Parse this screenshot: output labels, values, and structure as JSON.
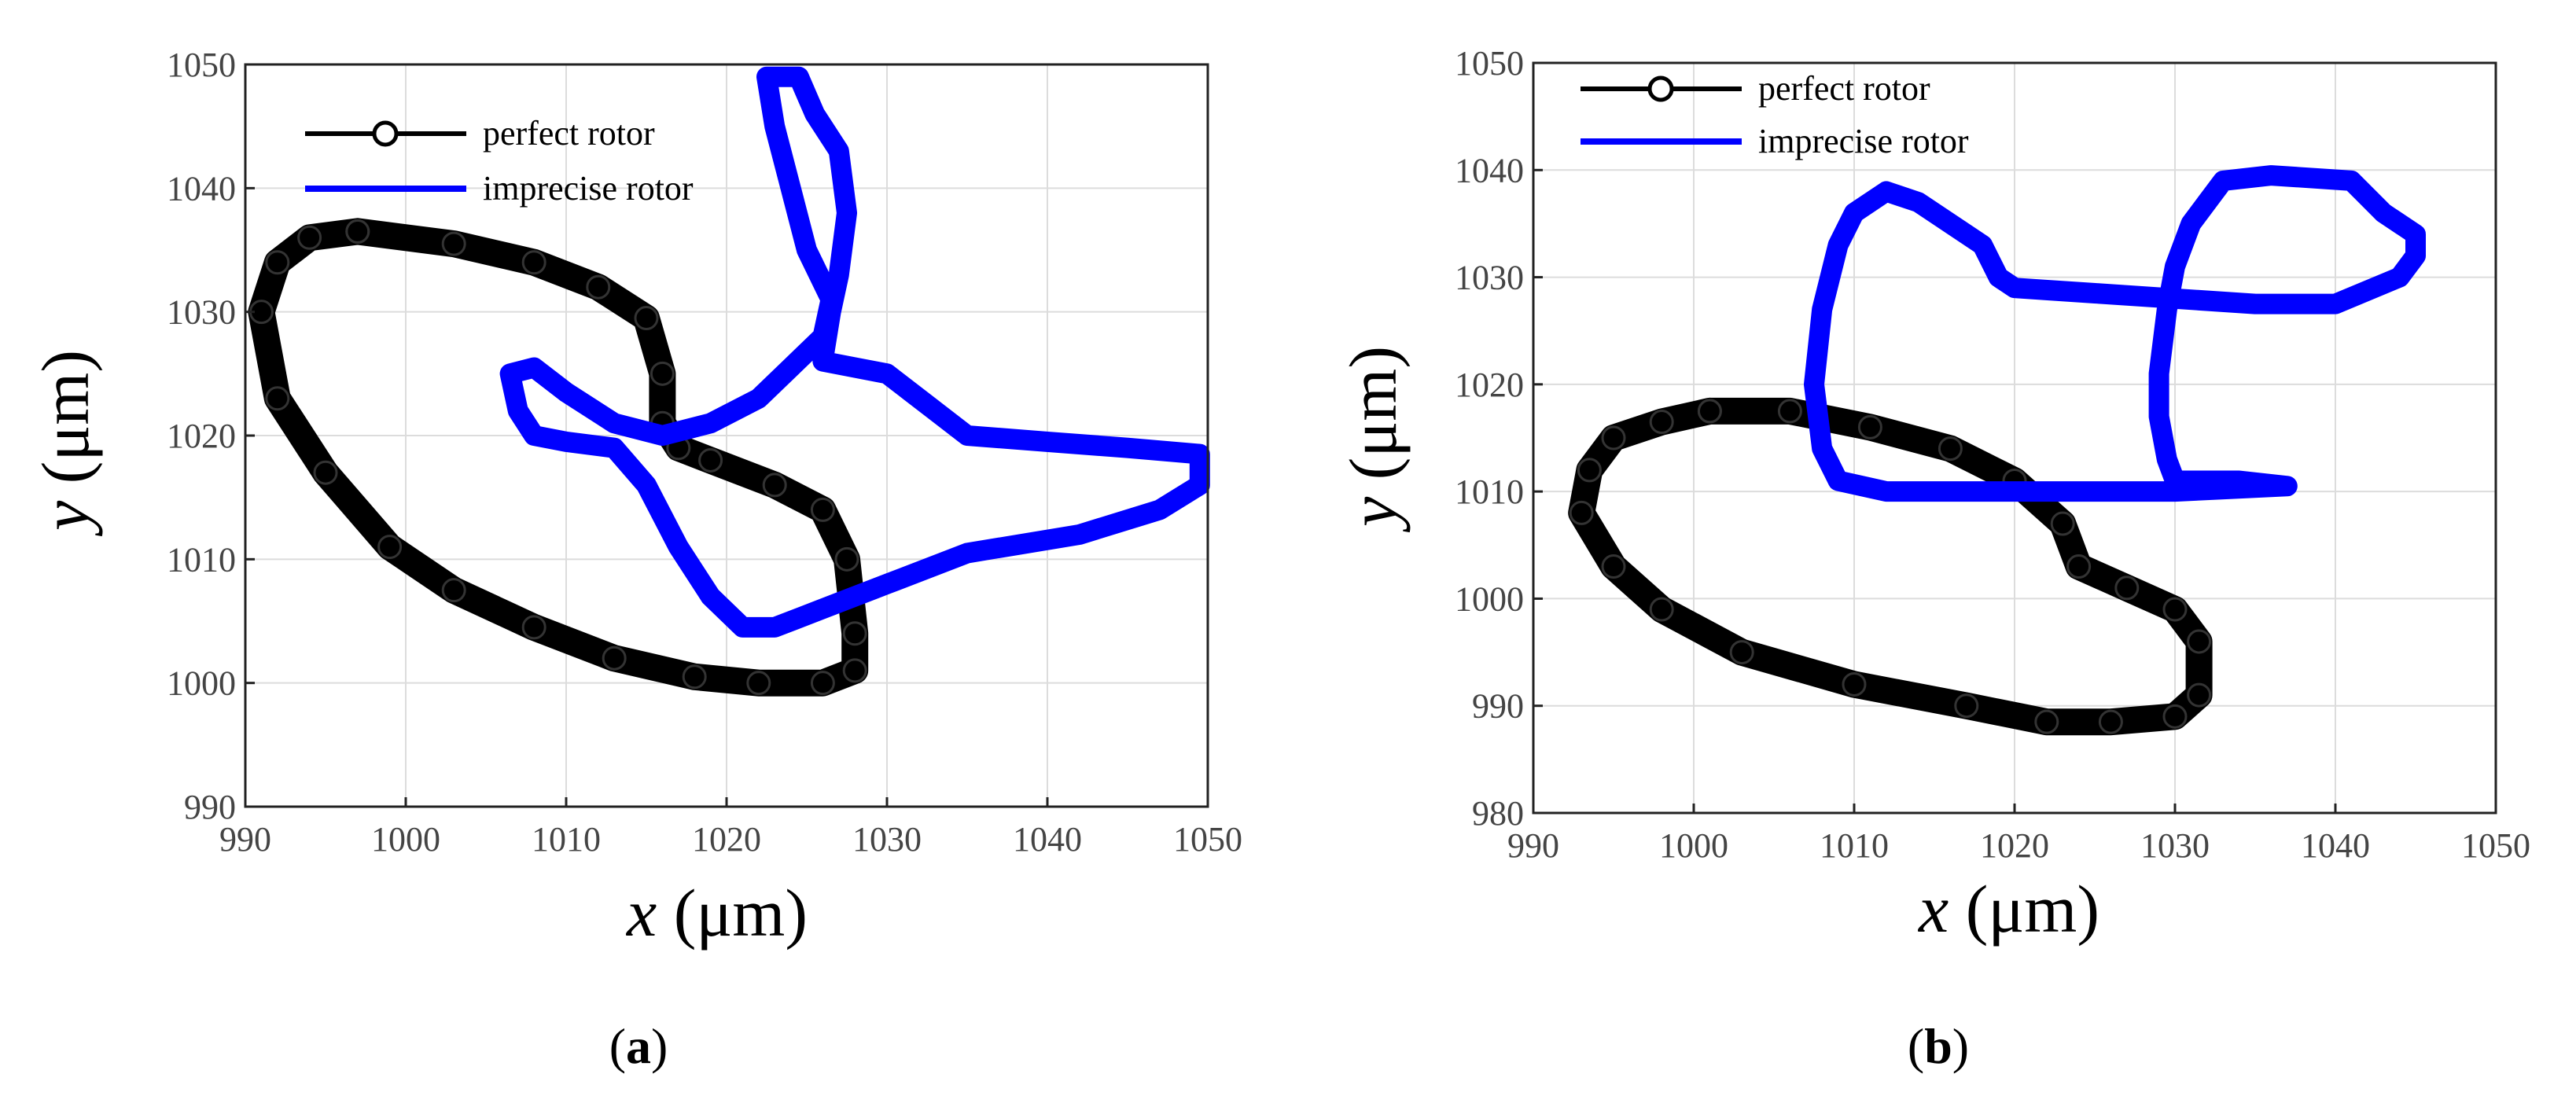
{
  "chart_data": [
    {
      "type": "line",
      "panel_label": "(a)",
      "xlabel": {
        "var": "x",
        "unit": " (μm)"
      },
      "ylabel": {
        "var": "y",
        "unit": " (μm)"
      },
      "xlim": [
        990,
        1050
      ],
      "ylim": [
        990,
        1050
      ],
      "xticks": [
        "990",
        "1000",
        "1010",
        "1020",
        "1030",
        "1040",
        "1050"
      ],
      "yticks": [
        "990",
        "1000",
        "1010",
        "1020",
        "1030",
        "1040",
        "1050"
      ],
      "grid": true,
      "legend": "top-left",
      "series": [
        {
          "name": "perfect rotor",
          "color": "#000000",
          "marker": "circle",
          "points": [
            [
              997,
              1036.5
            ],
            [
              1003,
              1035.5
            ],
            [
              1008,
              1034
            ],
            [
              1012,
              1032
            ],
            [
              1015,
              1029.5
            ],
            [
              1016,
              1025
            ],
            [
              1016,
              1021
            ],
            [
              1017,
              1019
            ],
            [
              1019,
              1018
            ],
            [
              1023,
              1016
            ],
            [
              1026,
              1014
            ],
            [
              1027.5,
              1010
            ],
            [
              1028,
              1004
            ],
            [
              1028,
              1001
            ],
            [
              1026,
              1000
            ],
            [
              1022,
              1000
            ],
            [
              1018,
              1000.5
            ],
            [
              1013,
              1002
            ],
            [
              1008,
              1004.5
            ],
            [
              1003,
              1007.5
            ],
            [
              999,
              1011
            ],
            [
              995,
              1017
            ],
            [
              992,
              1023
            ],
            [
              991,
              1030
            ],
            [
              992,
              1034
            ],
            [
              994,
              1036
            ],
            [
              997,
              1036.5
            ]
          ]
        },
        {
          "name": "imprecise rotor",
          "color": "#0000ff",
          "marker": "none",
          "points": [
            [
              1022.5,
              1049
            ],
            [
              1024.5,
              1049
            ],
            [
              1025.5,
              1046
            ],
            [
              1027,
              1043
            ],
            [
              1027.5,
              1038
            ],
            [
              1027,
              1033
            ],
            [
              1026.5,
              1030
            ],
            [
              1026,
              1026
            ],
            [
              1028,
              1025.5
            ],
            [
              1030,
              1025
            ],
            [
              1033,
              1022
            ],
            [
              1035,
              1020
            ],
            [
              1040,
              1019.5
            ],
            [
              1045,
              1019
            ],
            [
              1049.5,
              1018.5
            ],
            [
              1049.5,
              1016
            ],
            [
              1047,
              1014
            ],
            [
              1042,
              1012
            ],
            [
              1035,
              1010.5
            ],
            [
              1030,
              1008
            ],
            [
              1026,
              1006
            ],
            [
              1023,
              1004.5
            ],
            [
              1021,
              1004.5
            ],
            [
              1019,
              1007
            ],
            [
              1017,
              1011
            ],
            [
              1015,
              1016
            ],
            [
              1013,
              1019
            ],
            [
              1010,
              1019.5
            ],
            [
              1008,
              1020
            ],
            [
              1007,
              1022
            ],
            [
              1006.5,
              1025
            ],
            [
              1008,
              1025.5
            ],
            [
              1010,
              1023.5
            ],
            [
              1013,
              1021
            ],
            [
              1016,
              1020
            ],
            [
              1019,
              1021
            ],
            [
              1022,
              1023
            ],
            [
              1024,
              1025.5
            ],
            [
              1026,
              1028
            ],
            [
              1026.5,
              1031
            ],
            [
              1025,
              1035
            ],
            [
              1024,
              1040
            ],
            [
              1023,
              1045
            ],
            [
              1022.5,
              1049
            ]
          ]
        }
      ]
    },
    {
      "type": "line",
      "panel_label": "(b)",
      "xlabel": {
        "var": "x",
        "unit": " (μm)"
      },
      "ylabel": {
        "var": "y",
        "unit": " (μm)"
      },
      "xlim": [
        990,
        1050
      ],
      "ylim": [
        980,
        1050
      ],
      "xticks": [
        "990",
        "1000",
        "1010",
        "1020",
        "1030",
        "1040",
        "1050"
      ],
      "yticks": [
        "980",
        "990",
        "1000",
        "1010",
        "1020",
        "1030",
        "1040",
        "1050"
      ],
      "grid": true,
      "legend": "top-left",
      "series": [
        {
          "name": "perfect rotor",
          "color": "#000000",
          "marker": "circle",
          "points": [
            [
              1001,
              1017.5
            ],
            [
              1006,
              1017.5
            ],
            [
              1011,
              1016
            ],
            [
              1016,
              1014
            ],
            [
              1020,
              1011
            ],
            [
              1023,
              1007
            ],
            [
              1024,
              1003
            ],
            [
              1027,
              1001
            ],
            [
              1030,
              999
            ],
            [
              1031.5,
              996
            ],
            [
              1031.5,
              991
            ],
            [
              1030,
              989
            ],
            [
              1026,
              988.5
            ],
            [
              1022,
              988.5
            ],
            [
              1017,
              990
            ],
            [
              1010,
              992
            ],
            [
              1003,
              995
            ],
            [
              998,
              999
            ],
            [
              995,
              1003
            ],
            [
              993,
              1008
            ],
            [
              993.5,
              1012
            ],
            [
              995,
              1015
            ],
            [
              998,
              1016.5
            ],
            [
              1001,
              1017.5
            ]
          ]
        },
        {
          "name": "imprecise rotor",
          "color": "#0000ff",
          "marker": "none",
          "points": [
            [
              1008,
              1014
            ],
            [
              1007.5,
              1020
            ],
            [
              1008,
              1027
            ],
            [
              1009,
              1033
            ],
            [
              1010,
              1036
            ],
            [
              1012,
              1038
            ],
            [
              1014,
              1037
            ],
            [
              1015,
              1036
            ],
            [
              1017,
              1034
            ],
            [
              1018,
              1033
            ],
            [
              1019,
              1030
            ],
            [
              1020,
              1029
            ],
            [
              1025,
              1028.5
            ],
            [
              1030,
              1028
            ],
            [
              1035,
              1027.5
            ],
            [
              1040,
              1027.5
            ],
            [
              1044,
              1030
            ],
            [
              1045,
              1032
            ],
            [
              1045,
              1034
            ],
            [
              1043,
              1036
            ],
            [
              1041,
              1039
            ],
            [
              1036,
              1039.5
            ],
            [
              1033,
              1039
            ],
            [
              1031,
              1035
            ],
            [
              1030,
              1031
            ],
            [
              1029.5,
              1027
            ],
            [
              1029,
              1021
            ],
            [
              1029,
              1017
            ],
            [
              1029.5,
              1013
            ],
            [
              1030,
              1011
            ],
            [
              1034,
              1011
            ],
            [
              1037,
              1010.5
            ],
            [
              1030,
              1010
            ],
            [
              1020,
              1010
            ],
            [
              1012,
              1010
            ],
            [
              1009,
              1011
            ],
            [
              1008,
              1014
            ]
          ]
        }
      ]
    }
  ]
}
